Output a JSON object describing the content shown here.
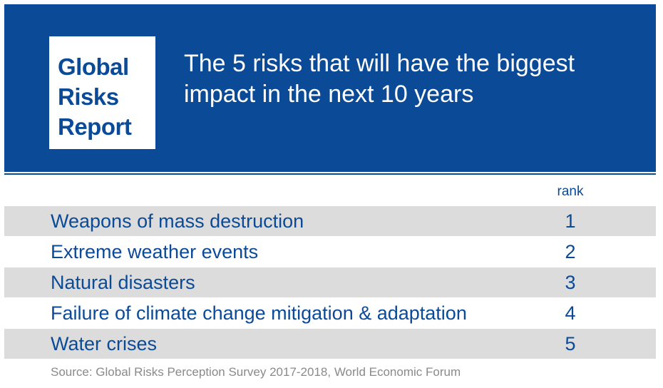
{
  "header": {
    "logo_lines": [
      "Global",
      "Risks",
      "Report"
    ],
    "title": "The 5 risks that will have the biggest impact in the next 10 years"
  },
  "table": {
    "column_header": "rank",
    "rows": [
      {
        "risk": "Weapons of mass destruction",
        "rank": "1"
      },
      {
        "risk": "Extreme weather events",
        "rank": "2"
      },
      {
        "risk": "Natural disasters",
        "rank": "3"
      },
      {
        "risk": "Failure of climate change mitigation & adaptation",
        "rank": "4"
      },
      {
        "risk": "Water crises",
        "rank": "5"
      }
    ]
  },
  "footer": {
    "source": "Source: Global Risks Perception Survey 2017-2018, World Economic Forum"
  },
  "colors": {
    "brand_blue": "#0b4a96",
    "row_shade": "#dcdcdc",
    "source_gray": "#8a8a8a"
  }
}
